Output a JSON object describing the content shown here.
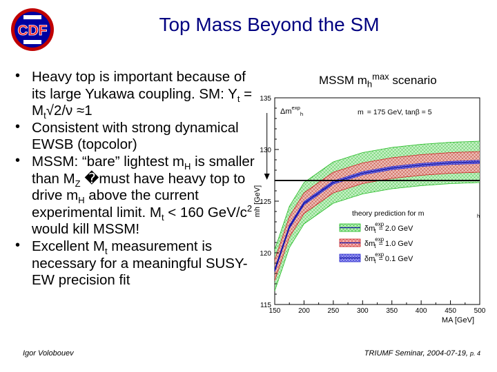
{
  "header": {
    "title": "Top Mass Beyond the SM",
    "logo_text": "CDF",
    "logo_colors": {
      "outer": "#c00000",
      "inner": "#0000a0",
      "letters": "#ff2020"
    }
  },
  "bullets": [
    {
      "id": "b1",
      "parts": [
        {
          "t": "Heavy top is important because of its large Yukawa coupling. SM: Y"
        },
        {
          "t": "t",
          "sub": true
        },
        {
          "t": " = M"
        },
        {
          "t": "t",
          "sub": true
        },
        {
          "t": "√2/ν ≈1"
        }
      ]
    },
    {
      "id": "b2",
      "parts": [
        {
          "t": "Consistent with strong dynamical EWSB (topcolor)"
        }
      ]
    },
    {
      "id": "b3",
      "parts": [
        {
          "t": "MSSM: “bare” lightest m"
        },
        {
          "t": "H",
          "sub": true
        },
        {
          "t": " is smaller than M"
        },
        {
          "t": "Z",
          "sub": true
        },
        {
          "t": " �must have heavy top to drive m"
        },
        {
          "t": "H",
          "sub": true
        },
        {
          "t": " above the current experimental limit. M"
        },
        {
          "t": "t",
          "sub": true
        },
        {
          "t": " < 160 GeV/c"
        },
        {
          "t": "2",
          "sup": true
        },
        {
          "t": " would kill MSSM!"
        }
      ]
    },
    {
      "id": "b4",
      "parts": [
        {
          "t": "Excellent M"
        },
        {
          "t": "t",
          "sub": true
        },
        {
          "t": " measurement is necessary for a meaningful SUSY-EW precision fit"
        }
      ]
    }
  ],
  "figure": {
    "heading": {
      "pre": "MSSM  m",
      "sub": "h",
      "sup": "max",
      "post": " scenario"
    },
    "label_delta_mh": {
      "pre": "Δm",
      "sub": "h",
      "sup": "exp"
    },
    "params": "m  = 175 GeV, tanβ = 5",
    "params_t": "t",
    "legend_title": "theory prediction for m",
    "legend_title_sub": "h",
    "legend": [
      {
        "sym": "δm",
        "sub": "t",
        "sup": "exp",
        "value": "= 2.0 GeV",
        "color": "#22bb22",
        "fill": "#a8e8a8"
      },
      {
        "sym": "δm",
        "sub": "t",
        "sup": "exp",
        "value": "= 1.0 GeV",
        "color": "#cc2222",
        "fill": "#f0a8a8"
      },
      {
        "sym": "δm",
        "sub": "t",
        "sup": "exp",
        "value": "= 0.1 GeV",
        "color": "#2222cc",
        "fill": "#a8a8f0"
      }
    ],
    "colors": {
      "limit_line": "#000000",
      "axis": "#000000"
    }
  },
  "chart_data": {
    "type": "line",
    "title": "MSSM mh max scenario",
    "xlabel": "MA [GeV]",
    "ylabel": "mh [GeV]",
    "xlim": [
      150,
      500
    ],
    "ylim": [
      115,
      135
    ],
    "xticks": [
      "150",
      "200",
      "250",
      "300",
      "350",
      "400",
      "450",
      "500"
    ],
    "yticks": [
      "115",
      "120",
      "125",
      "130",
      "135"
    ],
    "limit_value": 127,
    "x": [
      150,
      175,
      200,
      250,
      300,
      350,
      400,
      450,
      500
    ],
    "central": [
      118.3,
      122.5,
      124.8,
      126.8,
      127.7,
      128.2,
      128.5,
      128.7,
      128.8
    ],
    "bands": [
      {
        "name": "δmt exp = 2.0 GeV",
        "halfwidth": 2.0
      },
      {
        "name": "δmt exp = 1.0 GeV",
        "halfwidth": 1.0
      },
      {
        "name": "δmt exp = 0.1 GeV",
        "halfwidth": 0.15
      }
    ]
  },
  "footer": {
    "author": "Igor Volobouev",
    "seminar": "TRIUMF Seminar, 2004-07-19, ",
    "page": "p. 4"
  }
}
